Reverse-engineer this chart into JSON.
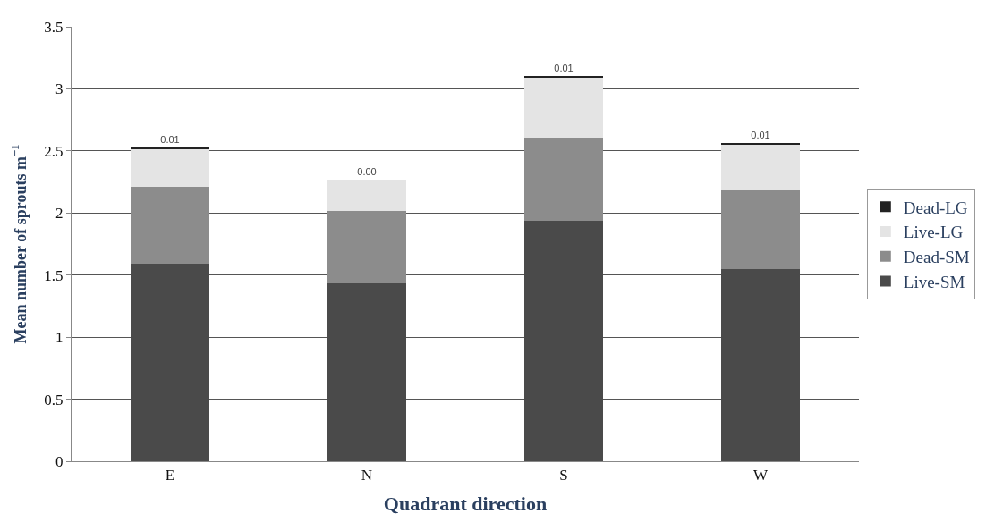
{
  "chart_data": {
    "type": "bar",
    "stacked": true,
    "xlabel": "Quadrant direction",
    "ylabel": "Mean number of sprouts m$^{−1}$",
    "categories": [
      "E",
      "N",
      "S",
      "W"
    ],
    "series": [
      {
        "name": "Live-SM",
        "color": "#4a4a4a",
        "values": [
          1.59,
          1.43,
          1.94,
          1.55
        ]
      },
      {
        "name": "Dead-SM",
        "color": "#8c8c8c",
        "values": [
          0.62,
          0.59,
          0.67,
          0.63
        ]
      },
      {
        "name": "Live-LG",
        "color": "#e4e4e4",
        "values": [
          0.31,
          0.25,
          0.48,
          0.37
        ]
      },
      {
        "name": "Dead-LG",
        "color": "#222222",
        "values": [
          0.01,
          0.0,
          0.01,
          0.01
        ],
        "value_labels": [
          "0.01",
          "0.00",
          "0.01",
          "0.01"
        ]
      }
    ],
    "ylim": [
      0,
      3.5
    ],
    "yticks": [
      0,
      0.5,
      1,
      1.5,
      2,
      2.5,
      3,
      3.5
    ],
    "grid": "y",
    "legend": "right"
  }
}
